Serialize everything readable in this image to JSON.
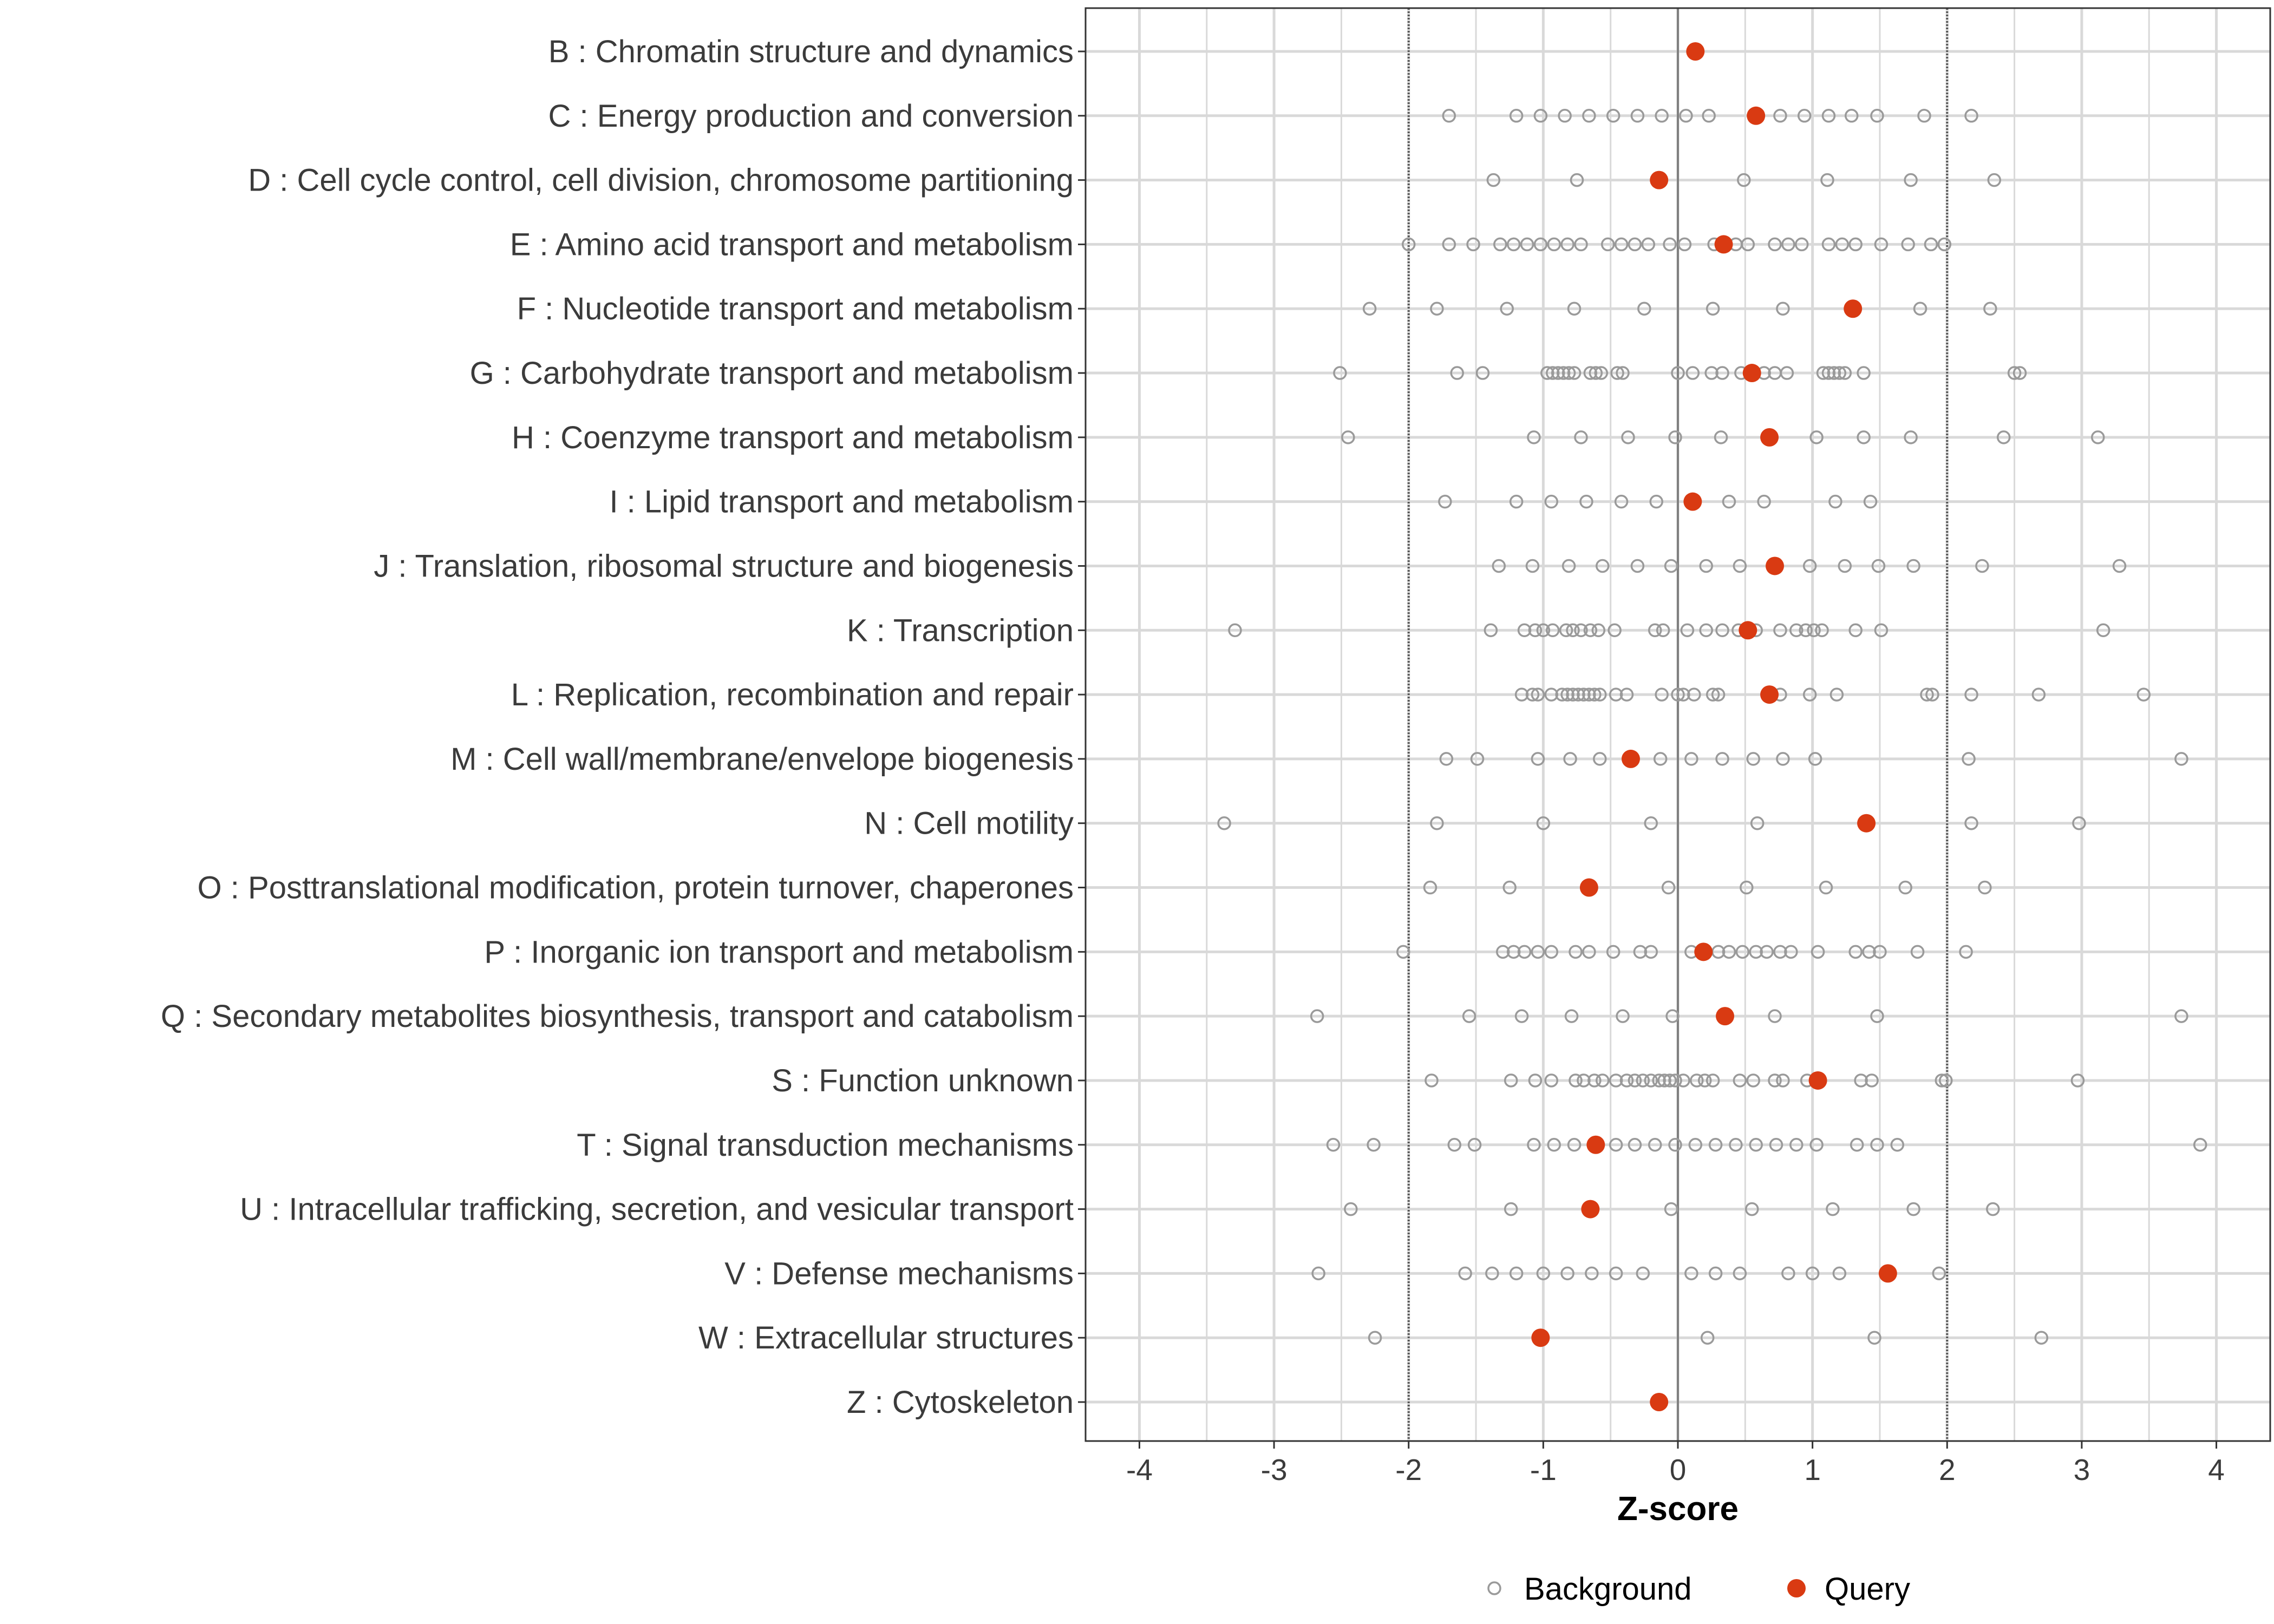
{
  "chart_data": {
    "type": "scatter",
    "xlabel": "Z-score",
    "xlim": [
      -4.4,
      4.4
    ],
    "x_ticks": [
      -4,
      -3,
      -2,
      -1,
      0,
      1,
      2,
      3,
      4
    ],
    "x_tick_labels": [
      "-4",
      "-3",
      "-2",
      "-1",
      "0",
      "1",
      "2",
      "3",
      "4"
    ],
    "reference_lines": [
      -2,
      0,
      2
    ],
    "grid": true,
    "legend": {
      "position": "bottom",
      "entries": [
        {
          "name": "Background",
          "marker": "open-circle"
        },
        {
          "name": "Query",
          "marker": "filled-circle"
        }
      ]
    },
    "colors": {
      "background": "#9a9a9a",
      "query": "#d93a12",
      "grid": "#d9d9d9",
      "panel_border": "#333333",
      "zero_line": "#808080",
      "threshold_line": "#555555"
    },
    "categories": [
      {
        "label": "B : Chromatin structure and dynamics",
        "query": 0.13,
        "background": []
      },
      {
        "label": "C : Energy production and conversion",
        "query": 0.58,
        "background": [
          -1.7,
          -1.2,
          -1.02,
          -0.84,
          -0.66,
          -0.48,
          -0.3,
          -0.12,
          0.06,
          0.23,
          0.76,
          0.94,
          1.12,
          1.29,
          1.48,
          1.83,
          2.18
        ]
      },
      {
        "label": "D : Cell cycle control, cell division, chromosome partitioning",
        "query": -0.14,
        "background": [
          -1.37,
          -0.75,
          0.49,
          1.11,
          1.73,
          2.35
        ]
      },
      {
        "label": "E : Amino acid transport and metabolism",
        "query": 0.34,
        "background": [
          -2.0,
          -1.7,
          -1.52,
          -1.32,
          -1.22,
          -1.12,
          -1.02,
          -0.92,
          -0.82,
          -0.72,
          -0.52,
          -0.42,
          -0.32,
          -0.22,
          -0.06,
          0.05,
          0.27,
          0.43,
          0.52,
          0.72,
          0.82,
          0.92,
          1.12,
          1.22,
          1.32,
          1.51,
          1.71,
          1.88,
          1.98
        ]
      },
      {
        "label": "F : Nucleotide transport and metabolism",
        "query": 1.3,
        "background": [
          -2.29,
          -1.79,
          -1.27,
          -0.77,
          -0.25,
          0.26,
          0.78,
          1.8,
          2.32
        ]
      },
      {
        "label": "G : Carbohydrate transport and metabolism",
        "query": 0.55,
        "background": [
          -2.51,
          -1.64,
          -1.45,
          -0.97,
          -0.93,
          -0.89,
          -0.85,
          -0.81,
          -0.77,
          -0.65,
          -0.61,
          -0.57,
          -0.45,
          -0.41,
          0.0,
          0.11,
          0.25,
          0.33,
          0.47,
          0.64,
          0.72,
          0.81,
          1.08,
          1.12,
          1.16,
          1.2,
          1.24,
          1.38,
          2.5,
          2.54
        ]
      },
      {
        "label": "H : Coenzyme transport and metabolism",
        "query": 0.68,
        "background": [
          -2.45,
          -1.07,
          -0.72,
          -0.37,
          -0.02,
          0.32,
          1.03,
          1.38,
          1.73,
          2.42,
          3.12
        ]
      },
      {
        "label": "I : Lipid transport and metabolism",
        "query": 0.11,
        "background": [
          -1.73,
          -1.2,
          -0.94,
          -0.68,
          -0.42,
          -0.16,
          0.38,
          0.64,
          1.17,
          1.43
        ]
      },
      {
        "label": "J : Translation, ribosomal structure and biogenesis",
        "query": 0.72,
        "background": [
          -1.33,
          -1.08,
          -0.81,
          -0.56,
          -0.3,
          -0.05,
          0.21,
          0.46,
          0.98,
          1.24,
          1.49,
          1.75,
          2.26,
          3.28
        ]
      },
      {
        "label": "K : Transcription",
        "query": 0.52,
        "background": [
          -3.29,
          -1.39,
          -1.14,
          -1.06,
          -1.0,
          -0.93,
          -0.83,
          -0.78,
          -0.72,
          -0.65,
          -0.59,
          -0.47,
          -0.17,
          -0.11,
          0.07,
          0.21,
          0.33,
          0.45,
          0.58,
          0.76,
          0.88,
          0.95,
          1.01,
          1.07,
          1.32,
          1.51,
          3.16
        ]
      },
      {
        "label": "L : Replication, recombination and repair",
        "query": 0.68,
        "background": [
          -1.16,
          -1.08,
          -1.04,
          -0.94,
          -0.86,
          -0.82,
          -0.78,
          -0.74,
          -0.7,
          -0.66,
          -0.62,
          -0.58,
          -0.46,
          -0.38,
          -0.12,
          0.0,
          0.04,
          0.12,
          0.26,
          0.3,
          0.76,
          0.98,
          1.18,
          1.85,
          1.89,
          2.18,
          2.68,
          3.46
        ]
      },
      {
        "label": "M : Cell wall/membrane/envelope biogenesis",
        "query": -0.35,
        "background": [
          -1.72,
          -1.49,
          -1.04,
          -0.8,
          -0.58,
          -0.13,
          0.1,
          0.33,
          0.56,
          0.78,
          1.02,
          2.16,
          3.74
        ]
      },
      {
        "label": "N : Cell motility",
        "query": 1.4,
        "background": [
          -3.37,
          -1.79,
          -1.0,
          -0.2,
          0.59,
          2.18,
          2.98
        ]
      },
      {
        "label": "O : Posttranslational modification, protein turnover, chaperones",
        "query": -0.66,
        "background": [
          -1.84,
          -1.25,
          -0.07,
          0.51,
          1.1,
          1.69,
          2.28
        ]
      },
      {
        "label": "P : Inorganic ion transport and metabolism",
        "query": 0.19,
        "background": [
          -2.04,
          -1.3,
          -1.22,
          -1.14,
          -1.04,
          -0.94,
          -0.76,
          -0.66,
          -0.48,
          -0.28,
          -0.2,
          0.1,
          0.3,
          0.38,
          0.48,
          0.58,
          0.66,
          0.76,
          0.84,
          1.04,
          1.32,
          1.42,
          1.5,
          1.78,
          2.14
        ]
      },
      {
        "label": "Q : Secondary metabolites biosynthesis, transport and catabolism",
        "query": 0.35,
        "background": [
          -2.68,
          -1.55,
          -1.16,
          -0.79,
          -0.41,
          -0.04,
          0.72,
          1.48,
          3.74
        ]
      },
      {
        "label": "S : Function unknown",
        "query": 1.04,
        "background": [
          -1.83,
          -1.24,
          -1.06,
          -0.94,
          -0.76,
          -0.7,
          -0.62,
          -0.56,
          -0.46,
          -0.38,
          -0.32,
          -0.26,
          -0.2,
          -0.14,
          -0.1,
          -0.06,
          -0.02,
          0.04,
          0.14,
          0.2,
          0.26,
          0.46,
          0.56,
          0.72,
          0.78,
          0.96,
          1.36,
          1.44,
          1.96,
          1.99,
          2.97
        ]
      },
      {
        "label": "T : Signal transduction mechanisms",
        "query": -0.61,
        "background": [
          -2.56,
          -2.26,
          -1.66,
          -1.51,
          -1.07,
          -0.92,
          -0.77,
          -0.46,
          -0.32,
          -0.17,
          -0.02,
          0.13,
          0.28,
          0.43,
          0.58,
          0.73,
          0.88,
          1.03,
          1.33,
          1.48,
          1.63,
          3.88
        ]
      },
      {
        "label": "U : Intracellular trafficking, secretion, and vesicular transport",
        "query": -0.65,
        "background": [
          -2.43,
          -1.24,
          -0.05,
          0.55,
          1.15,
          1.75,
          2.34
        ]
      },
      {
        "label": "V : Defense mechanisms",
        "query": 1.56,
        "background": [
          -2.67,
          -1.58,
          -1.38,
          -1.2,
          -1.0,
          -0.82,
          -0.64,
          -0.46,
          -0.26,
          0.1,
          0.28,
          0.46,
          0.82,
          1.0,
          1.2,
          1.94
        ]
      },
      {
        "label": "W : Extracellular structures",
        "query": -1.02,
        "background": [
          -2.25,
          0.22,
          1.46,
          2.7
        ]
      },
      {
        "label": "Z : Cytoskeleton",
        "query": -0.14,
        "background": []
      }
    ]
  }
}
